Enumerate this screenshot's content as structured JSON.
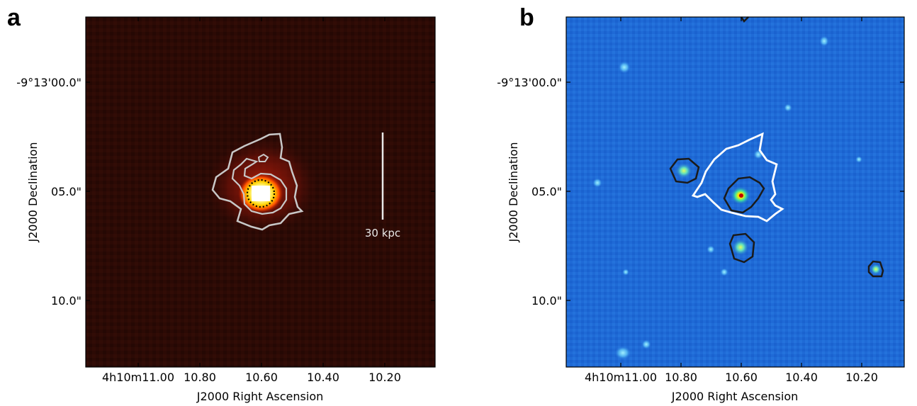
{
  "panels": [
    {
      "letter": "a",
      "xlabel": "J2000 Right Ascension",
      "ylabel": "J2000 Declination",
      "xticks": [
        "4h10m11.00",
        "10.80",
        "10.60",
        "10.40",
        "10.20"
      ],
      "yticks": [
        "-9°13'00.0\"",
        "05.0\"",
        "10.0\""
      ],
      "scalebar_label": "30 kpc",
      "colormap": "hot",
      "background_color": "#2a0905",
      "contour_color": "#c8c8c8"
    },
    {
      "letter": "b",
      "xlabel": "J2000 Right Ascension",
      "ylabel": "J2000 Declination",
      "xticks": [
        "4h10m11.00",
        "10.80",
        "10.60",
        "10.40",
        "10.20"
      ],
      "yticks": [
        "-9°13'00.0\"",
        "05.0\"",
        "10.0\""
      ],
      "colormap": "jet",
      "background_color": "#1e6ad8",
      "contour_colors": [
        "#ffffff",
        "#1a1a1a"
      ]
    }
  ]
}
